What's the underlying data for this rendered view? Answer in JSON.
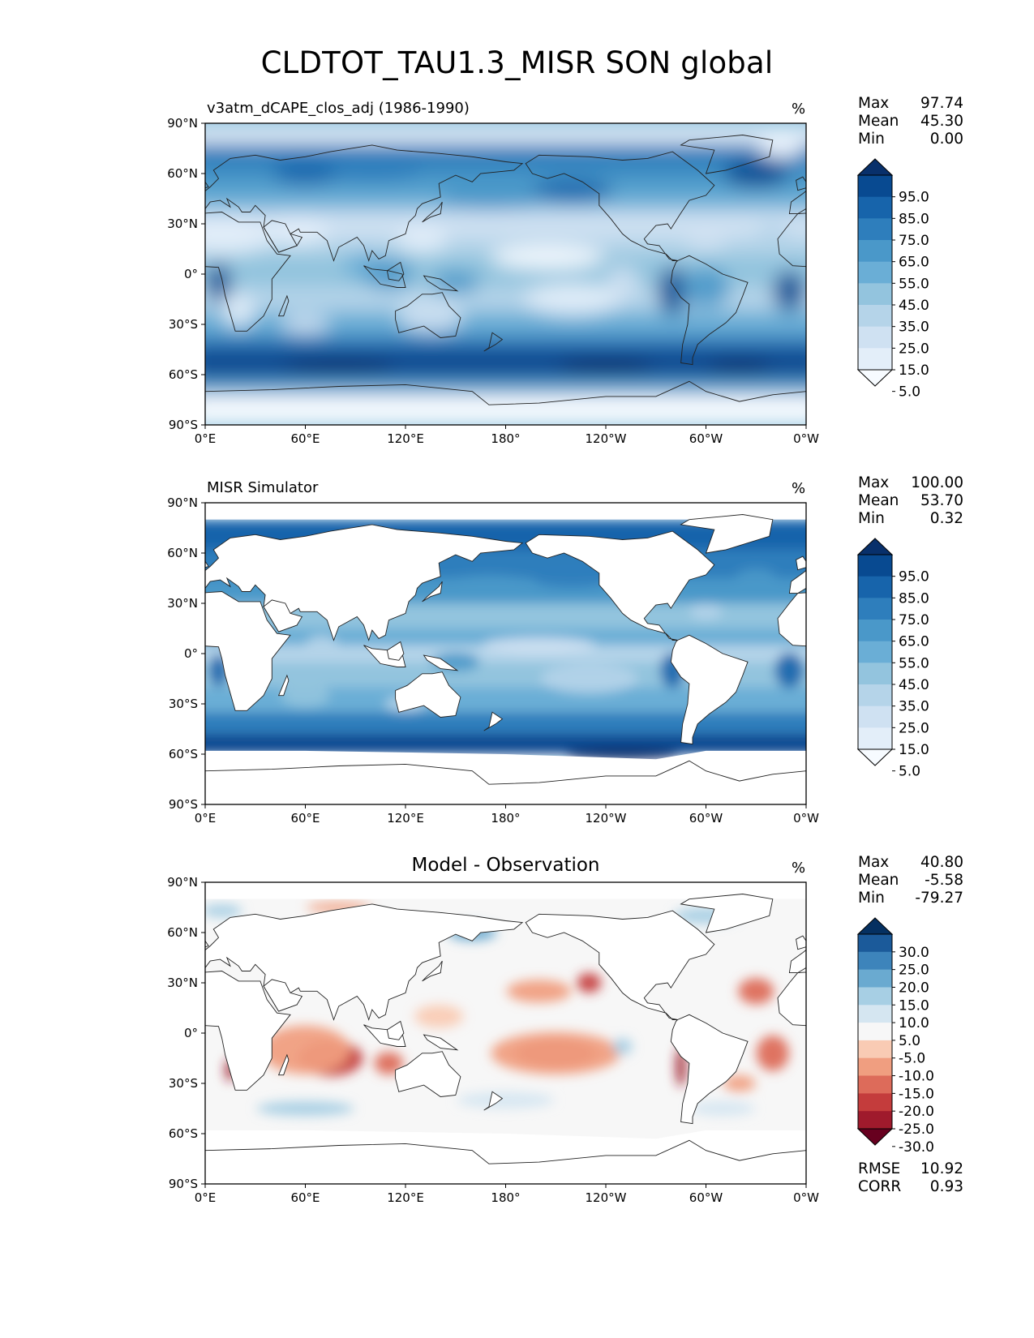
{
  "figure": {
    "title": "CLDTOT_TAU1.3_MISR SON global"
  },
  "panels": [
    {
      "id": "test",
      "title": "v3atm_dCAPE_clos_adj (1986-1990)",
      "units": "%",
      "stats": [
        {
          "label": "Max",
          "value": "97.74"
        },
        {
          "label": "Mean",
          "value": "45.30"
        },
        {
          "label": "Min",
          "value": "0.00"
        }
      ],
      "colorbar_labels": [
        "95.0",
        "85.0",
        "75.0",
        "65.0",
        "55.0",
        "45.0",
        "35.0",
        "25.0",
        "15.0",
        "5.0"
      ]
    },
    {
      "id": "ref",
      "title": "MISR Simulator",
      "units": "%",
      "stats": [
        {
          "label": "Max",
          "value": "100.00"
        },
        {
          "label": "Mean",
          "value": "53.70"
        },
        {
          "label": "Min",
          "value": "0.32"
        }
      ],
      "colorbar_labels": [
        "95.0",
        "85.0",
        "75.0",
        "65.0",
        "55.0",
        "45.0",
        "35.0",
        "25.0",
        "15.0",
        "5.0"
      ]
    },
    {
      "id": "diff",
      "title": "Model - Observation",
      "units": "%",
      "stats": [
        {
          "label": "Max",
          "value": "40.80"
        },
        {
          "label": "Mean",
          "value": "-5.58"
        },
        {
          "label": "Min",
          "value": "-79.27"
        }
      ],
      "colorbar_labels": [
        "30.0",
        "25.0",
        "20.0",
        "15.0",
        "10.0",
        "5.0",
        "-5.0",
        "-10.0",
        "-15.0",
        "-20.0",
        "-25.0",
        "-30.0"
      ],
      "extra_stats": [
        {
          "label": "RMSE",
          "value": "10.92"
        },
        {
          "label": "CORR",
          "value": "0.93"
        }
      ]
    }
  ],
  "chart_data": [
    {
      "type": "heatmap",
      "title": "v3atm_dCAPE_clos_adj (1986-1990)",
      "units": "%",
      "x_ticks": [
        "0°E",
        "60°E",
        "120°E",
        "180°",
        "120°W",
        "60°W",
        "0°W"
      ],
      "y_ticks": [
        "90°N",
        "60°N",
        "30°N",
        "0°",
        "30°S",
        "60°S",
        "90°S"
      ],
      "xlim": [
        0,
        360
      ],
      "ylim": [
        -90,
        90
      ],
      "levels": [
        5,
        15,
        25,
        35,
        45,
        55,
        65,
        75,
        85,
        95
      ],
      "colors": [
        "#f7fbff",
        "#e3eef9",
        "#cfe1f2",
        "#b5d4e9",
        "#93c4de",
        "#6aaed6",
        "#4a98c9",
        "#2e7ebc",
        "#1764ab",
        "#084a91",
        "#08306b"
      ],
      "extend": "both",
      "max": 97.74,
      "mean": 45.3,
      "min": 0.0
    },
    {
      "type": "heatmap",
      "title": "MISR Simulator",
      "units": "%",
      "x_ticks": [
        "0°E",
        "60°E",
        "120°E",
        "180°",
        "120°W",
        "60°W",
        "0°W"
      ],
      "y_ticks": [
        "90°N",
        "60°N",
        "30°N",
        "0°",
        "30°S",
        "60°S",
        "90°S"
      ],
      "xlim": [
        0,
        360
      ],
      "ylim": [
        -90,
        90
      ],
      "levels": [
        5,
        15,
        25,
        35,
        45,
        55,
        65,
        75,
        85,
        95
      ],
      "colors": [
        "#f7fbff",
        "#e3eef9",
        "#cfe1f2",
        "#b5d4e9",
        "#93c4de",
        "#6aaed6",
        "#4a98c9",
        "#2e7ebc",
        "#1764ab",
        "#084a91",
        "#08306b"
      ],
      "extend": "both",
      "max": 100.0,
      "mean": 53.7,
      "min": 0.32
    },
    {
      "type": "heatmap",
      "title": "Model - Observation",
      "units": "%",
      "x_ticks": [
        "0°E",
        "60°E",
        "120°E",
        "180°",
        "120°W",
        "60°W",
        "0°W"
      ],
      "y_ticks": [
        "90°N",
        "60°N",
        "30°N",
        "0°",
        "30°S",
        "60°S",
        "90°S"
      ],
      "xlim": [
        0,
        360
      ],
      "ylim": [
        -90,
        90
      ],
      "levels": [
        -30,
        -25,
        -20,
        -15,
        -10,
        -5,
        5,
        10,
        15,
        20,
        25,
        30
      ],
      "colors": [
        "#67001f",
        "#9f1a2c",
        "#c43c3c",
        "#dd6b5a",
        "#f09e80",
        "#f9cbb4",
        "#f7f7f7",
        "#d5e6f1",
        "#a7cfe4",
        "#6aaad0",
        "#3d84bb",
        "#1b5a9a",
        "#053061"
      ],
      "extend": "both",
      "max": 40.8,
      "mean": -5.58,
      "min": -79.27,
      "rmse": 10.92,
      "corr": 0.93
    }
  ]
}
